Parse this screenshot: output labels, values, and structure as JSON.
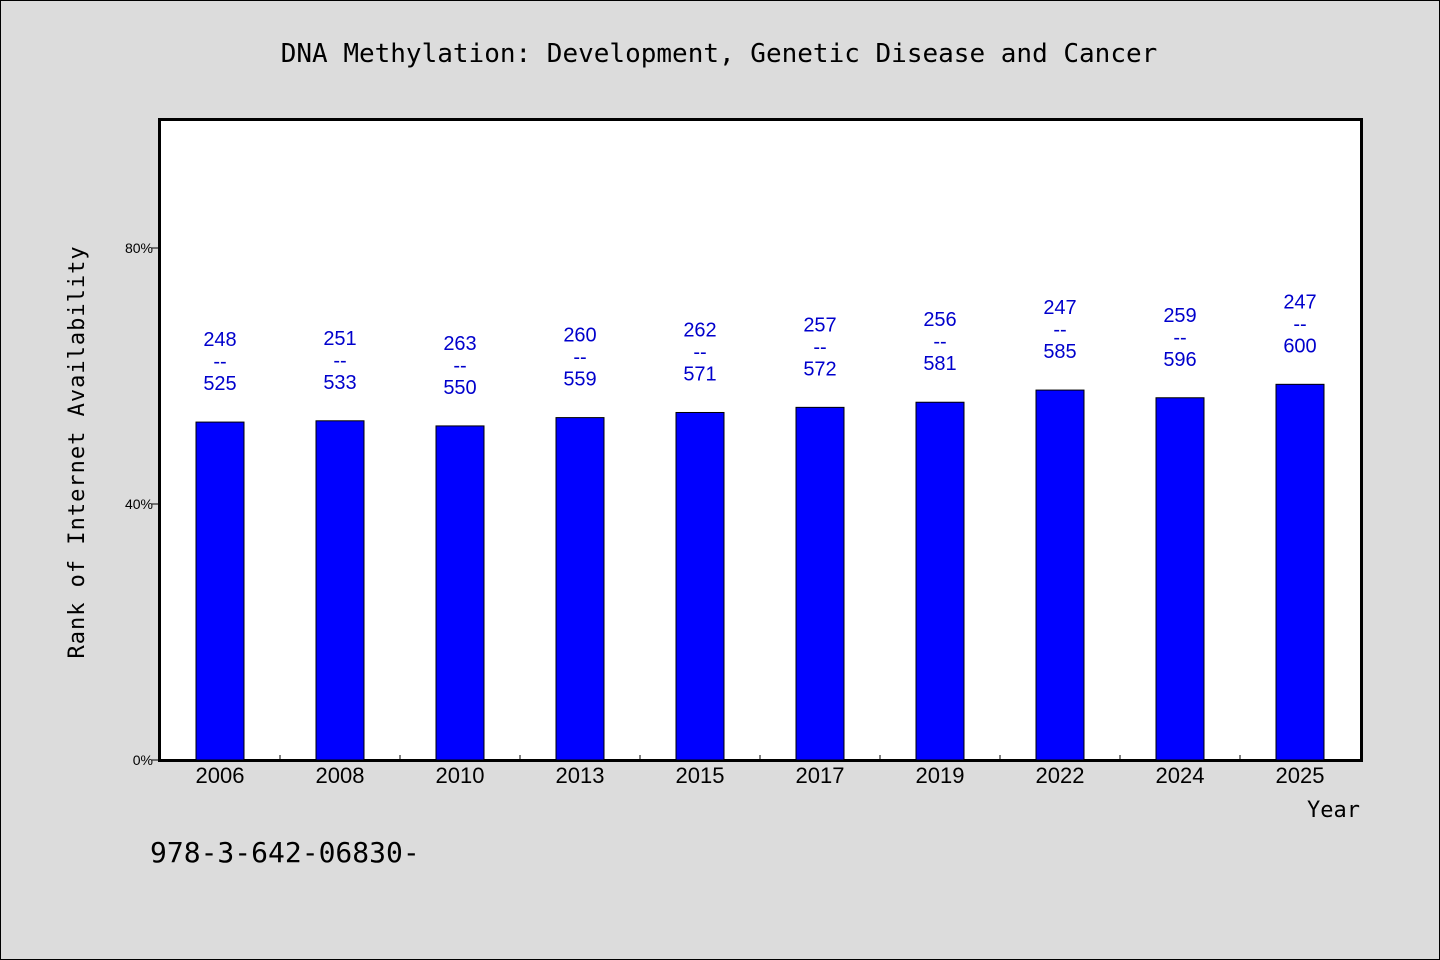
{
  "chart_data": {
    "type": "bar",
    "title": "DNA Methylation: Development, Genetic Disease and Cancer",
    "xlabel": "Year",
    "ylabel": "Rank of Internet Availability",
    "categories": [
      "2006",
      "2008",
      "2010",
      "2013",
      "2015",
      "2017",
      "2019",
      "2022",
      "2024",
      "2025"
    ],
    "values": [
      52.8,
      53.0,
      52.2,
      53.5,
      54.3,
      55.1,
      55.9,
      57.8,
      56.6,
      58.7
    ],
    "bar_labels": [
      [
        "248",
        "--",
        "525"
      ],
      [
        "251",
        "--",
        "533"
      ],
      [
        "263",
        "--",
        "550"
      ],
      [
        "260",
        "--",
        "559"
      ],
      [
        "262",
        "--",
        "571"
      ],
      [
        "257",
        "--",
        "572"
      ],
      [
        "256",
        "--",
        "581"
      ],
      [
        "247",
        "--",
        "585"
      ],
      [
        "259",
        "--",
        "596"
      ],
      [
        "247",
        "--",
        "600"
      ]
    ],
    "yticks": [
      0,
      40,
      80
    ],
    "ytick_labels": [
      "0%",
      "40%",
      "80%"
    ],
    "ylim": [
      0,
      100
    ],
    "grid": false,
    "legend": "none",
    "colors": {
      "bar": "#0000ff",
      "label": "#0000cc",
      "background": "#dcdcdc",
      "plot_bg": "#ffffff"
    }
  },
  "footnote": "978-3-642-06830-"
}
